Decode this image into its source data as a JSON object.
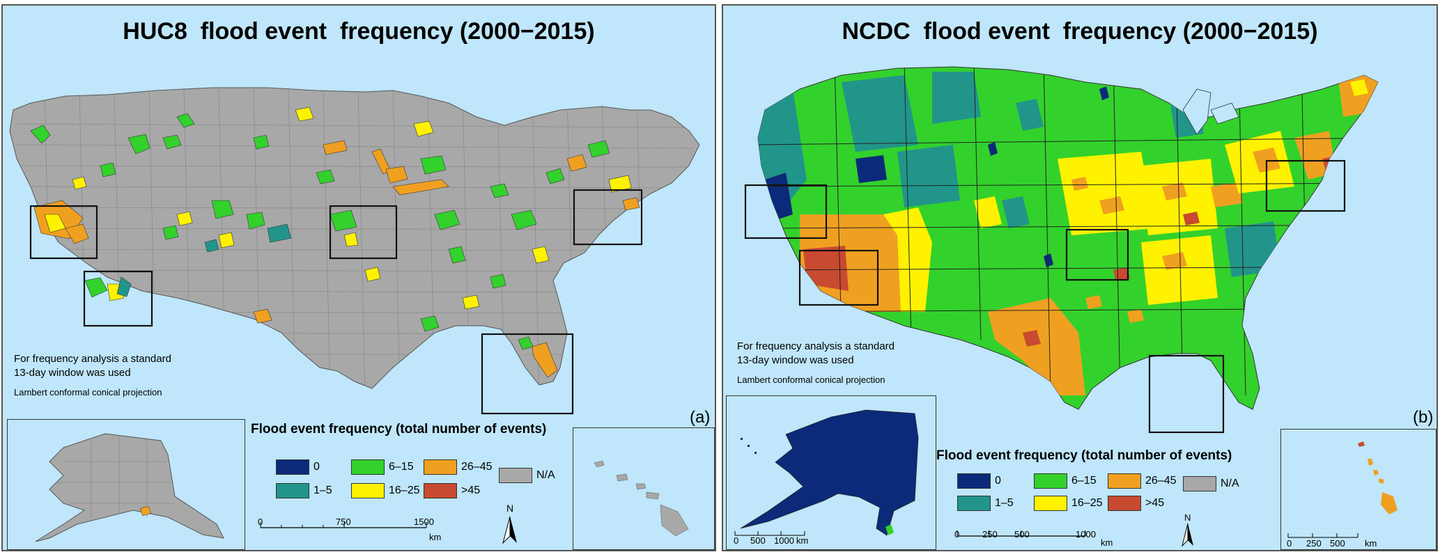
{
  "colors": {
    "c0": "#0b2a7a",
    "c1_5": "#21958a",
    "c6_15": "#33d12c",
    "c16_25": "#fff200",
    "c26_45": "#f0a020",
    "c45": "#c84a30",
    "na": "#a8a8a8",
    "sea": "#bfe6fa"
  },
  "panel_a": {
    "title": "HUC8  flood event  frequency (2000−2015)",
    "note_line1": "For frequency analysis a standard",
    "note_line2": "13-day window  was used",
    "projection": "Lambert conformal conical projection",
    "panel_label": "(a)",
    "legend_title": "Flood event frequency (total number of events)",
    "legend": [
      {
        "label": "0",
        "color_key": "c0"
      },
      {
        "label": "1–5",
        "color_key": "c1_5"
      },
      {
        "label": "6–15",
        "color_key": "c6_15"
      },
      {
        "label": "16–25",
        "color_key": "c16_25"
      },
      {
        "label": "26–45",
        "color_key": "c26_45"
      },
      {
        "label": ">45",
        "color_key": "c45"
      },
      {
        "label": "N/A",
        "color_key": "na"
      }
    ],
    "scale_ticks": [
      "0",
      "750",
      "1500"
    ],
    "scale_unit": "km",
    "north": "N"
  },
  "panel_b": {
    "title": "NCDC  flood event  frequency (2000−2015)",
    "note_line1": "For frequency analysis a standard",
    "note_line2": "13-day window  was used",
    "projection": "Lambert conformal conical projection",
    "panel_label": "(b)",
    "legend_title": "Flood event frequency (total number of events)",
    "legend": [
      {
        "label": "0",
        "color_key": "c0"
      },
      {
        "label": "1–5",
        "color_key": "c1_5"
      },
      {
        "label": "6–15",
        "color_key": "c6_15"
      },
      {
        "label": "16–25",
        "color_key": "c16_25"
      },
      {
        "label": "26–45",
        "color_key": "c26_45"
      },
      {
        "label": ">45",
        "color_key": "c45"
      },
      {
        "label": "N/A",
        "color_key": "na"
      }
    ],
    "scale_ticks": [
      "0",
      "250",
      "500",
      "1000"
    ],
    "scale_unit": "km",
    "alaska_scale_ticks": [
      "0",
      "500",
      "1000"
    ],
    "alaska_scale_unit": "km",
    "hawaii_scale_ticks": [
      "0",
      "250",
      "500"
    ],
    "hawaii_scale_unit": "km",
    "north": "N"
  }
}
